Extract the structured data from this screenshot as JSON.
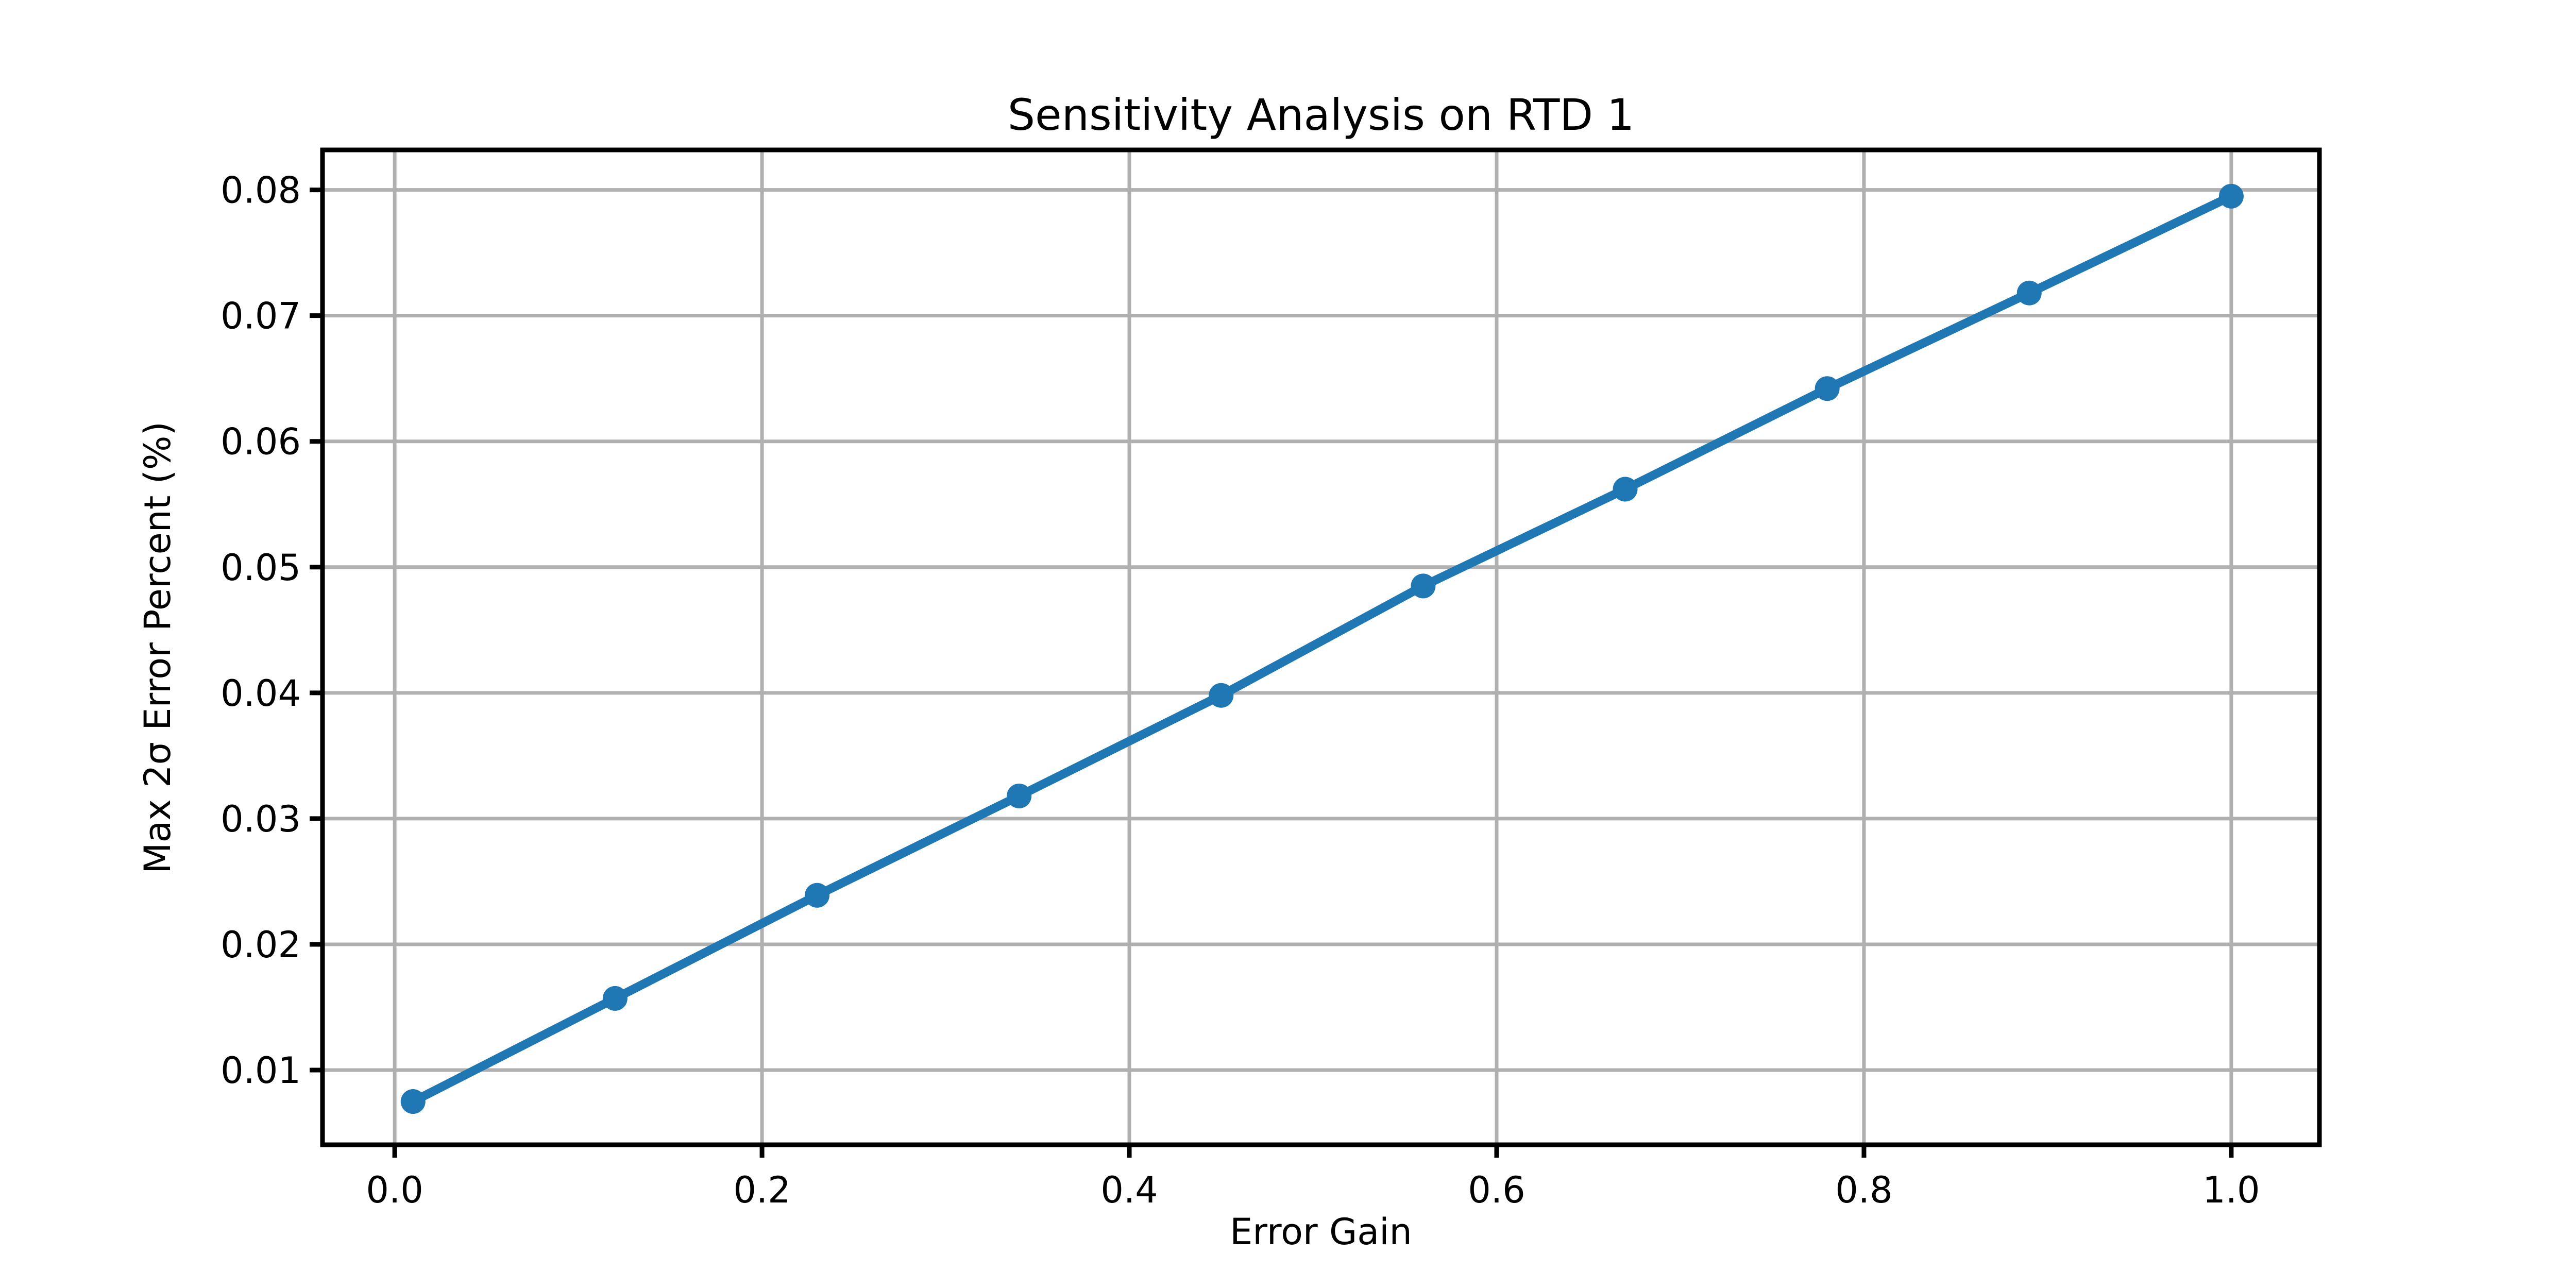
{
  "chart_data": {
    "type": "line",
    "title": "Sensitivity Analysis on RTD 1",
    "xlabel": "Error Gain",
    "ylabel": "Max 2σ Error Percent (%)",
    "x": [
      0.01,
      0.12,
      0.23,
      0.34,
      0.45,
      0.56,
      0.67,
      0.78,
      0.89,
      1.0
    ],
    "y": [
      0.0075,
      0.0157,
      0.0239,
      0.0318,
      0.0398,
      0.0485,
      0.0562,
      0.0642,
      0.0718,
      0.0795
    ],
    "marker": "circle",
    "line_color": "#1f77b4",
    "marker_color": "#1f77b4",
    "xtick_labels": [
      "0.0",
      "0.2",
      "0.4",
      "0.6",
      "0.8",
      "1.0"
    ],
    "xtick_values": [
      0.0,
      0.2,
      0.4,
      0.6,
      0.8,
      1.0
    ],
    "ytick_labels": [
      "0.01",
      "0.02",
      "0.03",
      "0.04",
      "0.05",
      "0.06",
      "0.07",
      "0.08"
    ],
    "ytick_values": [
      0.01,
      0.02,
      0.03,
      0.04,
      0.05,
      0.06,
      0.07,
      0.08
    ],
    "xlim": [
      -0.0393,
      1.048
    ],
    "ylim": [
      0.00406,
      0.08318
    ],
    "grid": true,
    "grid_color": "#b0b0b0",
    "axes_color": "#000000",
    "background": "#ffffff",
    "legend": false
  }
}
